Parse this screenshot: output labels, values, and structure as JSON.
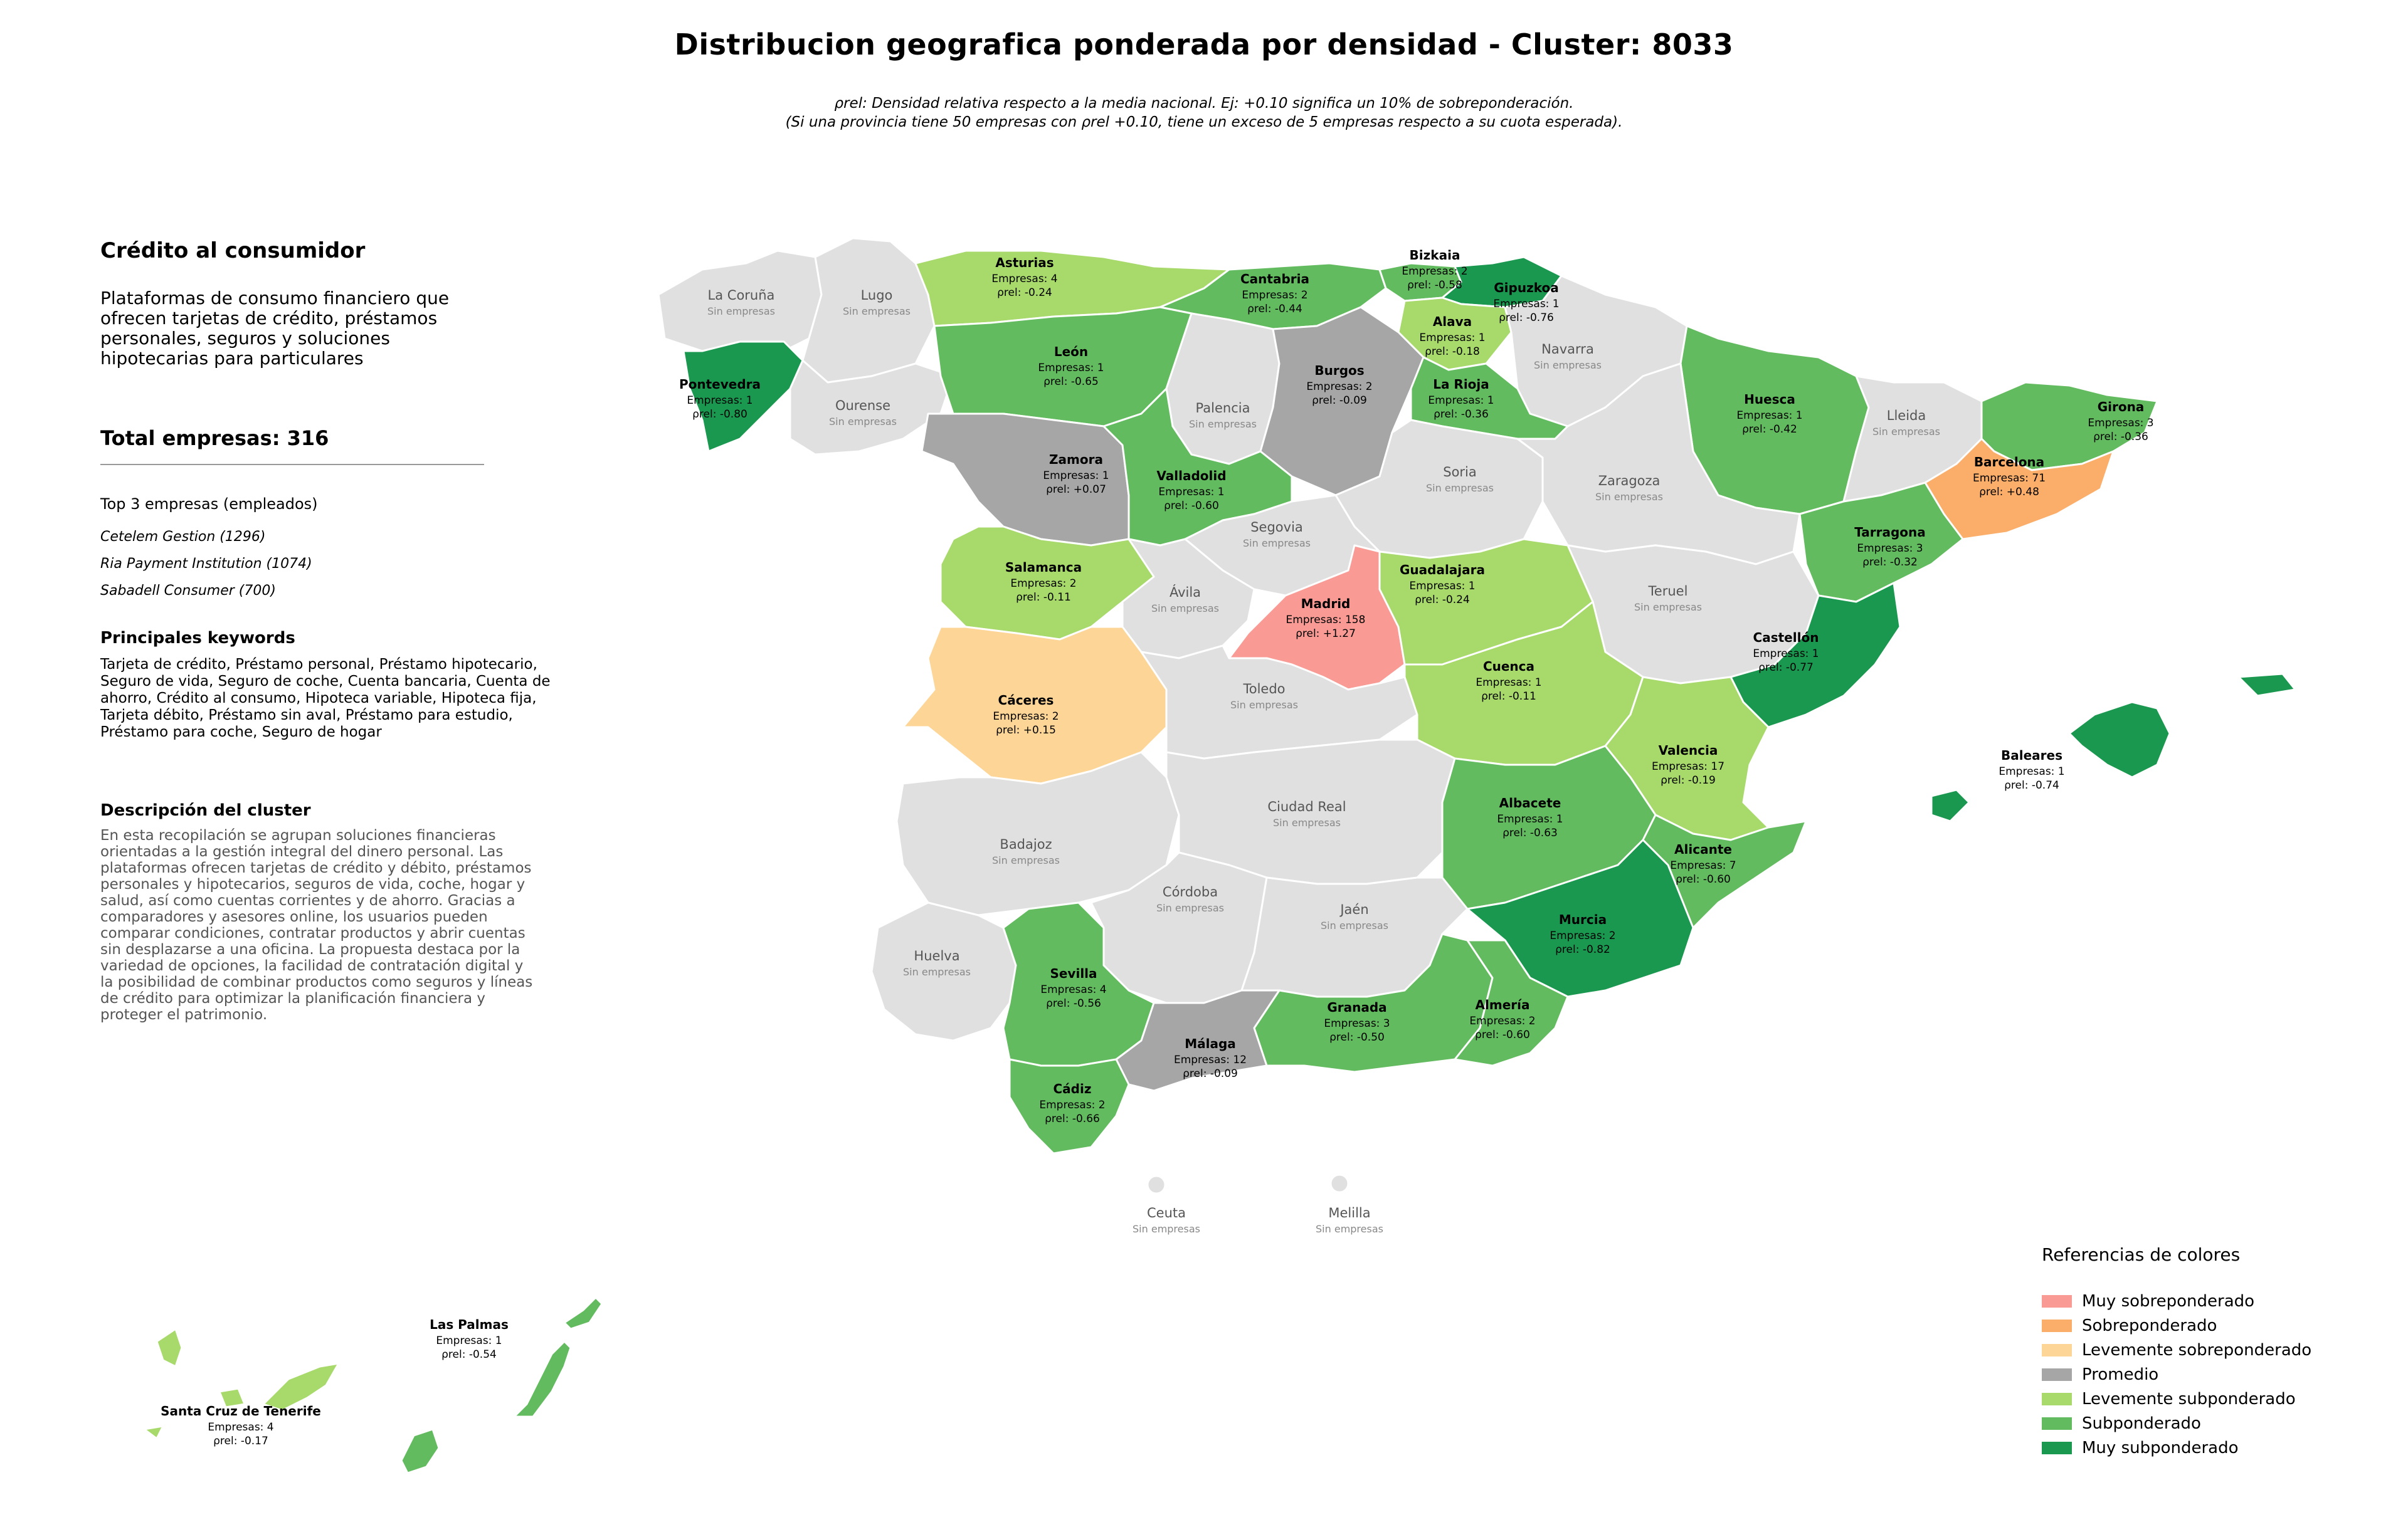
{
  "title": "Distribucion geografica ponderada por densidad - Cluster: 8033",
  "subtitle_line1": "ρrel: Densidad relativa respecto a la media nacional. Ej: +0.10 significa un 10% de sobreponderación.",
  "subtitle_line2": "(Si una provincia tiene 50 empresas con ρrel +0.10, tiene un exceso de 5 empresas respecto a su cuota esperada).",
  "cluster": {
    "name": "Crédito al consumidor",
    "summary": "Plataformas de consumo financiero que ofrecen tarjetas de crédito, préstamos personales, seguros y soluciones hipotecarias para particulares",
    "total_label": "Total empresas: 316",
    "top_header": "Top 3 empresas (empleados)",
    "top_companies": [
      "Cetelem Gestion (1296)",
      "Ria Payment Institution (1074)",
      "Sabadell Consumer (700)"
    ],
    "keywords_header": "Principales keywords",
    "keywords": "Tarjeta de crédito, Préstamo personal, Préstamo hipotecario, Seguro de vida, Seguro de coche, Cuenta bancaria, Cuenta de ahorro, Crédito al consumo, Hipoteca variable, Hipoteca fija, Tarjeta débito, Préstamo sin aval, Préstamo para estudio, Préstamo para coche, Seguro de hogar",
    "description_header": "Descripción del cluster",
    "description": "En esta recopilación se agrupan soluciones financieras orientadas a la gestión integral del dinero personal. Las plataformas ofrecen tarjetas de crédito y débito, préstamos personales y hipotecarios, seguros de vida, coche, hogar y salud, así como cuentas corrientes y de ahorro. Gracias a comparadores y asesores online, los usuarios pueden comparar condiciones, contratar productos y abrir cuentas sin desplazarse a una oficina. La propuesta destaca por la variedad de opciones, la facilidad de contratación digital y la posibilidad de combinar productos como seguros y líneas de crédito para optimizar la planificación financiera y proteger el patrimonio."
  },
  "legend": {
    "title": "Referencias de colores",
    "items": [
      {
        "label": "Muy sobreponderado",
        "color": "#f99b94"
      },
      {
        "label": "Sobreponderado",
        "color": "#fbae69"
      },
      {
        "label": "Levemente sobreponderado",
        "color": "#fdd596"
      },
      {
        "label": "Promedio",
        "color": "#a6a6a6"
      },
      {
        "label": "Levemente subponderado",
        "color": "#a7d96b"
      },
      {
        "label": "Subponderado",
        "color": "#63bb5f"
      },
      {
        "label": "Muy subponderado",
        "color": "#1a9850"
      }
    ]
  },
  "empty_label": "Sin empresas",
  "provinces": [
    {
      "name": "La Coruña",
      "empresas": null,
      "rho": null,
      "category": "Sin empresas",
      "color": "#e0e0e0"
    },
    {
      "name": "Lugo",
      "empresas": null,
      "rho": null,
      "category": "Sin empresas",
      "color": "#e0e0e0"
    },
    {
      "name": "Asturias",
      "empresas": "Empresas: 4",
      "rho": "-0.24",
      "category": "Levemente subponderado",
      "color": "#a7d96b"
    },
    {
      "name": "Cantabria",
      "empresas": "Empresas: 2",
      "rho": "-0.44",
      "category": "Subponderado",
      "color": "#63bb5f"
    },
    {
      "name": "Bizkaia",
      "empresas": "Empresas: 2",
      "rho": "-0.58",
      "category": "Subponderado",
      "color": "#63bb5f"
    },
    {
      "name": "Gipuzkoa",
      "empresas": "Empresas: 1",
      "rho": "-0.76",
      "category": "Muy subponderado",
      "color": "#1a9850"
    },
    {
      "name": "Alava",
      "empresas": "Empresas: 1",
      "rho": "-0.18",
      "category": "Levemente subponderado",
      "color": "#a7d96b"
    },
    {
      "name": "Navarra",
      "empresas": null,
      "rho": null,
      "category": "Sin empresas",
      "color": "#e0e0e0"
    },
    {
      "name": "Pontevedra",
      "empresas": "Empresas: 1",
      "rho": "-0.80",
      "category": "Muy subponderado",
      "color": "#1a9850"
    },
    {
      "name": "Ourense",
      "empresas": null,
      "rho": null,
      "category": "Sin empresas",
      "color": "#e0e0e0"
    },
    {
      "name": "León",
      "empresas": "Empresas: 1",
      "rho": "-0.65",
      "category": "Subponderado",
      "color": "#63bb5f"
    },
    {
      "name": "Palencia",
      "empresas": null,
      "rho": null,
      "category": "Sin empresas",
      "color": "#e0e0e0"
    },
    {
      "name": "Burgos",
      "empresas": "Empresas: 2",
      "rho": "-0.09",
      "category": "Promedio",
      "color": "#a6a6a6"
    },
    {
      "name": "La Rioja",
      "empresas": "Empresas: 1",
      "rho": "-0.36",
      "category": "Subponderado",
      "color": "#63bb5f"
    },
    {
      "name": "Huesca",
      "empresas": "Empresas: 1",
      "rho": "-0.42",
      "category": "Subponderado",
      "color": "#63bb5f"
    },
    {
      "name": "Lleida",
      "empresas": null,
      "rho": null,
      "category": "Sin empresas",
      "color": "#e0e0e0"
    },
    {
      "name": "Girona",
      "empresas": "Empresas: 3",
      "rho": "-0.36",
      "category": "Subponderado",
      "color": "#63bb5f"
    },
    {
      "name": "Barcelona",
      "empresas": "Empresas: 71",
      "rho": "+0.48",
      "category": "Sobreponderado",
      "color": "#fbae69"
    },
    {
      "name": "Zamora",
      "empresas": "Empresas: 1",
      "rho": "+0.07",
      "category": "Promedio",
      "color": "#a6a6a6"
    },
    {
      "name": "Valladolid",
      "empresas": "Empresas: 1",
      "rho": "-0.60",
      "category": "Subponderado",
      "color": "#63bb5f"
    },
    {
      "name": "Soria",
      "empresas": null,
      "rho": null,
      "category": "Sin empresas",
      "color": "#e0e0e0"
    },
    {
      "name": "Zaragoza",
      "empresas": null,
      "rho": null,
      "category": "Sin empresas",
      "color": "#e0e0e0"
    },
    {
      "name": "Tarragona",
      "empresas": "Empresas: 3",
      "rho": "-0.32",
      "category": "Subponderado",
      "color": "#63bb5f"
    },
    {
      "name": "Salamanca",
      "empresas": "Empresas: 2",
      "rho": "-0.11",
      "category": "Levemente subponderado",
      "color": "#a7d96b"
    },
    {
      "name": "Segovia",
      "empresas": null,
      "rho": null,
      "category": "Sin empresas",
      "color": "#e0e0e0"
    },
    {
      "name": "Ávila",
      "empresas": null,
      "rho": null,
      "category": "Sin empresas",
      "color": "#e0e0e0"
    },
    {
      "name": "Madrid",
      "empresas": "Empresas: 158",
      "rho": "+1.27",
      "category": "Muy sobreponderado",
      "color": "#f99b94"
    },
    {
      "name": "Guadalajara",
      "empresas": "Empresas: 1",
      "rho": "-0.24",
      "category": "Levemente subponderado",
      "color": "#a7d96b"
    },
    {
      "name": "Teruel",
      "empresas": null,
      "rho": null,
      "category": "Sin empresas",
      "color": "#e0e0e0"
    },
    {
      "name": "Castellón",
      "empresas": "Empresas: 1",
      "rho": "-0.77",
      "category": "Muy subponderado",
      "color": "#1a9850"
    },
    {
      "name": "Cáceres",
      "empresas": "Empresas: 2",
      "rho": "+0.15",
      "category": "Levemente sobreponderado",
      "color": "#fdd596"
    },
    {
      "name": "Toledo",
      "empresas": null,
      "rho": null,
      "category": "Sin empresas",
      "color": "#e0e0e0"
    },
    {
      "name": "Cuenca",
      "empresas": "Empresas: 1",
      "rho": "-0.11",
      "category": "Levemente subponderado",
      "color": "#a7d96b"
    },
    {
      "name": "Valencia",
      "empresas": "Empresas: 17",
      "rho": "-0.19",
      "category": "Levemente subponderado",
      "color": "#a7d96b"
    },
    {
      "name": "Baleares",
      "empresas": "Empresas: 1",
      "rho": "-0.74",
      "category": "Muy subponderado",
      "color": "#1a9850"
    },
    {
      "name": "Badajoz",
      "empresas": null,
      "rho": null,
      "category": "Sin empresas",
      "color": "#e0e0e0"
    },
    {
      "name": "Ciudad Real",
      "empresas": null,
      "rho": null,
      "category": "Sin empresas",
      "color": "#e0e0e0"
    },
    {
      "name": "Albacete",
      "empresas": "Empresas: 1",
      "rho": "-0.63",
      "category": "Subponderado",
      "color": "#63bb5f"
    },
    {
      "name": "Alicante",
      "empresas": "Empresas: 7",
      "rho": "-0.60",
      "category": "Subponderado",
      "color": "#63bb5f"
    },
    {
      "name": "Córdoba",
      "empresas": null,
      "rho": null,
      "category": "Sin empresas",
      "color": "#e0e0e0"
    },
    {
      "name": "Jaén",
      "empresas": null,
      "rho": null,
      "category": "Sin empresas",
      "color": "#e0e0e0"
    },
    {
      "name": "Murcia",
      "empresas": "Empresas: 2",
      "rho": "-0.82",
      "category": "Muy subponderado",
      "color": "#1a9850"
    },
    {
      "name": "Huelva",
      "empresas": null,
      "rho": null,
      "category": "Sin empresas",
      "color": "#e0e0e0"
    },
    {
      "name": "Sevilla",
      "empresas": "Empresas: 4",
      "rho": "-0.56",
      "category": "Subponderado",
      "color": "#63bb5f"
    },
    {
      "name": "Granada",
      "empresas": "Empresas: 3",
      "rho": "-0.50",
      "category": "Subponderado",
      "color": "#63bb5f"
    },
    {
      "name": "Almería",
      "empresas": "Empresas: 2",
      "rho": "-0.60",
      "category": "Subponderado",
      "color": "#63bb5f"
    },
    {
      "name": "Málaga",
      "empresas": "Empresas: 12",
      "rho": "-0.09",
      "category": "Promedio",
      "color": "#a6a6a6"
    },
    {
      "name": "Cádiz",
      "empresas": "Empresas: 2",
      "rho": "-0.66",
      "category": "Subponderado",
      "color": "#63bb5f"
    },
    {
      "name": "Ceuta",
      "empresas": null,
      "rho": null,
      "category": "Sin empresas",
      "color": "#e0e0e0"
    },
    {
      "name": "Melilla",
      "empresas": null,
      "rho": null,
      "category": "Sin empresas",
      "color": "#e0e0e0"
    },
    {
      "name": "Las Palmas",
      "empresas": "Empresas: 1",
      "rho": "-0.54",
      "category": "Subponderado",
      "color": "#63bb5f"
    },
    {
      "name": "Santa Cruz de Tenerife",
      "empresas": "Empresas: 4",
      "rho": "-0.17",
      "category": "Levemente subponderado",
      "color": "#a7d96b"
    }
  ]
}
